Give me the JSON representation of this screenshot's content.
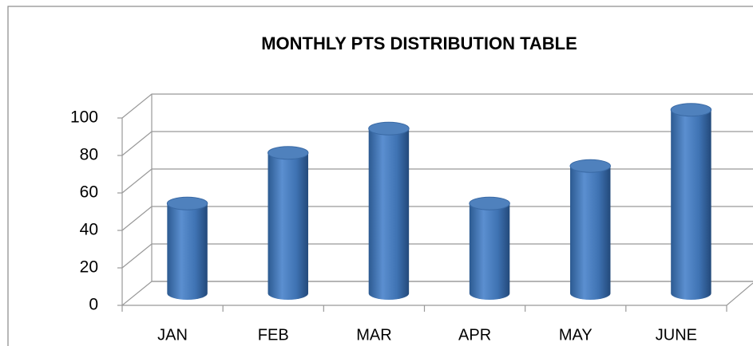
{
  "chart_data": {
    "type": "bar",
    "title": "MONTHLY PTS DISTRIBUTION TABLE",
    "categories": [
      "JAN",
      "FEB",
      "MAR",
      "APR",
      "MAY",
      "JUNE"
    ],
    "values": [
      48,
      75,
      88,
      48,
      68,
      98
    ],
    "color": "#4f81bd",
    "ylim": [
      0,
      100
    ],
    "yticks": [
      0,
      20,
      40,
      60,
      80,
      100
    ],
    "grid": true
  }
}
